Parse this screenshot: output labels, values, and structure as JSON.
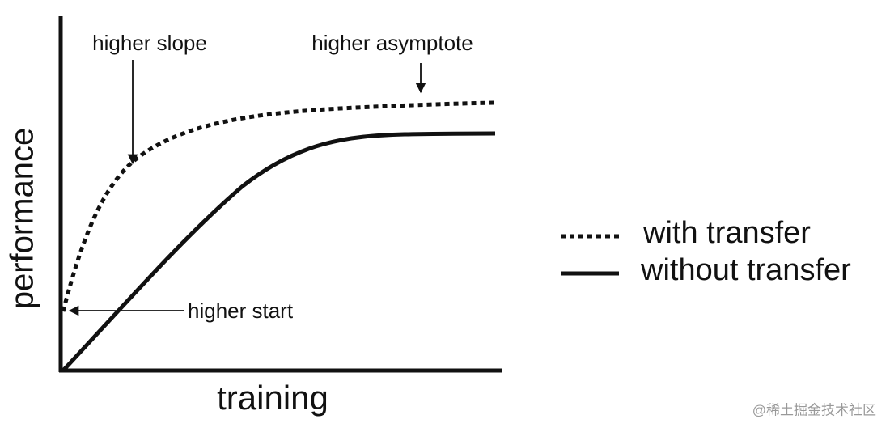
{
  "axes": {
    "y_label": "performance",
    "x_label": "training"
  },
  "annotations": {
    "slope": "higher slope",
    "asymptote": "higher asymptote",
    "start": "higher start"
  },
  "legend": {
    "items": [
      {
        "label": "with transfer"
      },
      {
        "label": "without transfer"
      }
    ]
  },
  "watermark": "@稀土掘金技术社区"
}
